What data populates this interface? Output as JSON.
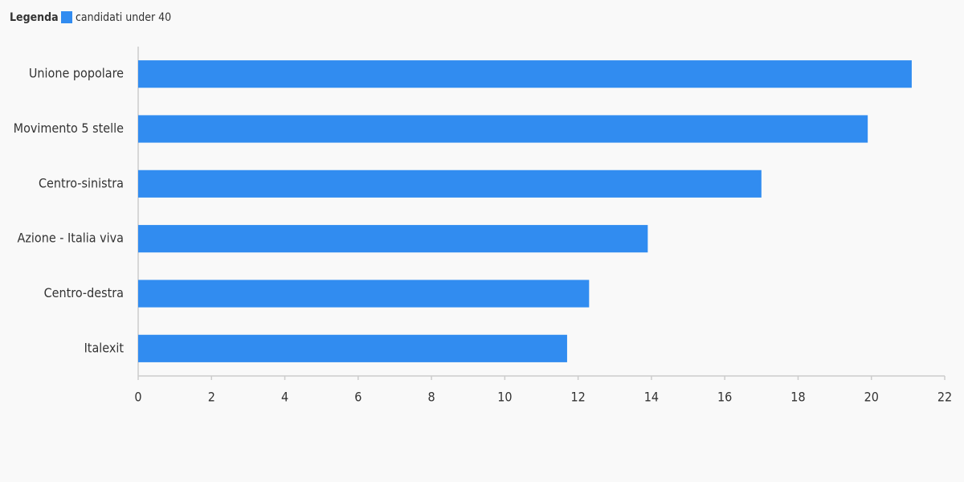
{
  "chart_data": {
    "type": "bar",
    "orientation": "horizontal",
    "legend_title": "Legenda",
    "categories": [
      "Unione popolare",
      "Movimento 5 stelle",
      "Centro-sinistra",
      "Azione - Italia viva",
      "Centro-destra",
      "Italexit"
    ],
    "series": [
      {
        "name": "candidati under 40",
        "color": "#318cf0",
        "values": [
          21.1,
          19.9,
          17.0,
          13.9,
          12.3,
          11.7
        ]
      }
    ],
    "xlim": [
      0,
      22
    ],
    "xticks": [
      0,
      2,
      4,
      6,
      8,
      10,
      12,
      14,
      16,
      18,
      20,
      22
    ],
    "legend": "top-left",
    "grid": false
  }
}
